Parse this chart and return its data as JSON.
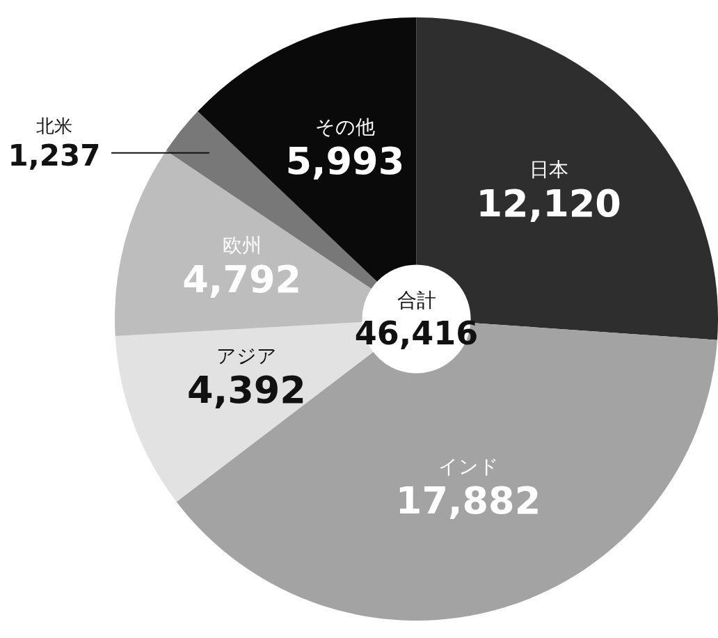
{
  "chart_data": {
    "type": "donut",
    "categories": [
      "日本",
      "インド",
      "アジア",
      "欧州",
      "北米",
      "その他"
    ],
    "values": [
      12120,
      17882,
      4392,
      4792,
      1237,
      5993
    ],
    "colors": [
      "#2e2e2e",
      "#a3a3a3",
      "#e2e2e2",
      "#bdbdbd",
      "#787878",
      "#0a0a0a"
    ],
    "value_labels": [
      "12,120",
      "17,882",
      "4,392",
      "4,792",
      "1,237",
      "5,993"
    ],
    "legend": false,
    "annotations": [
      "合計",
      "46,416"
    ]
  }
}
